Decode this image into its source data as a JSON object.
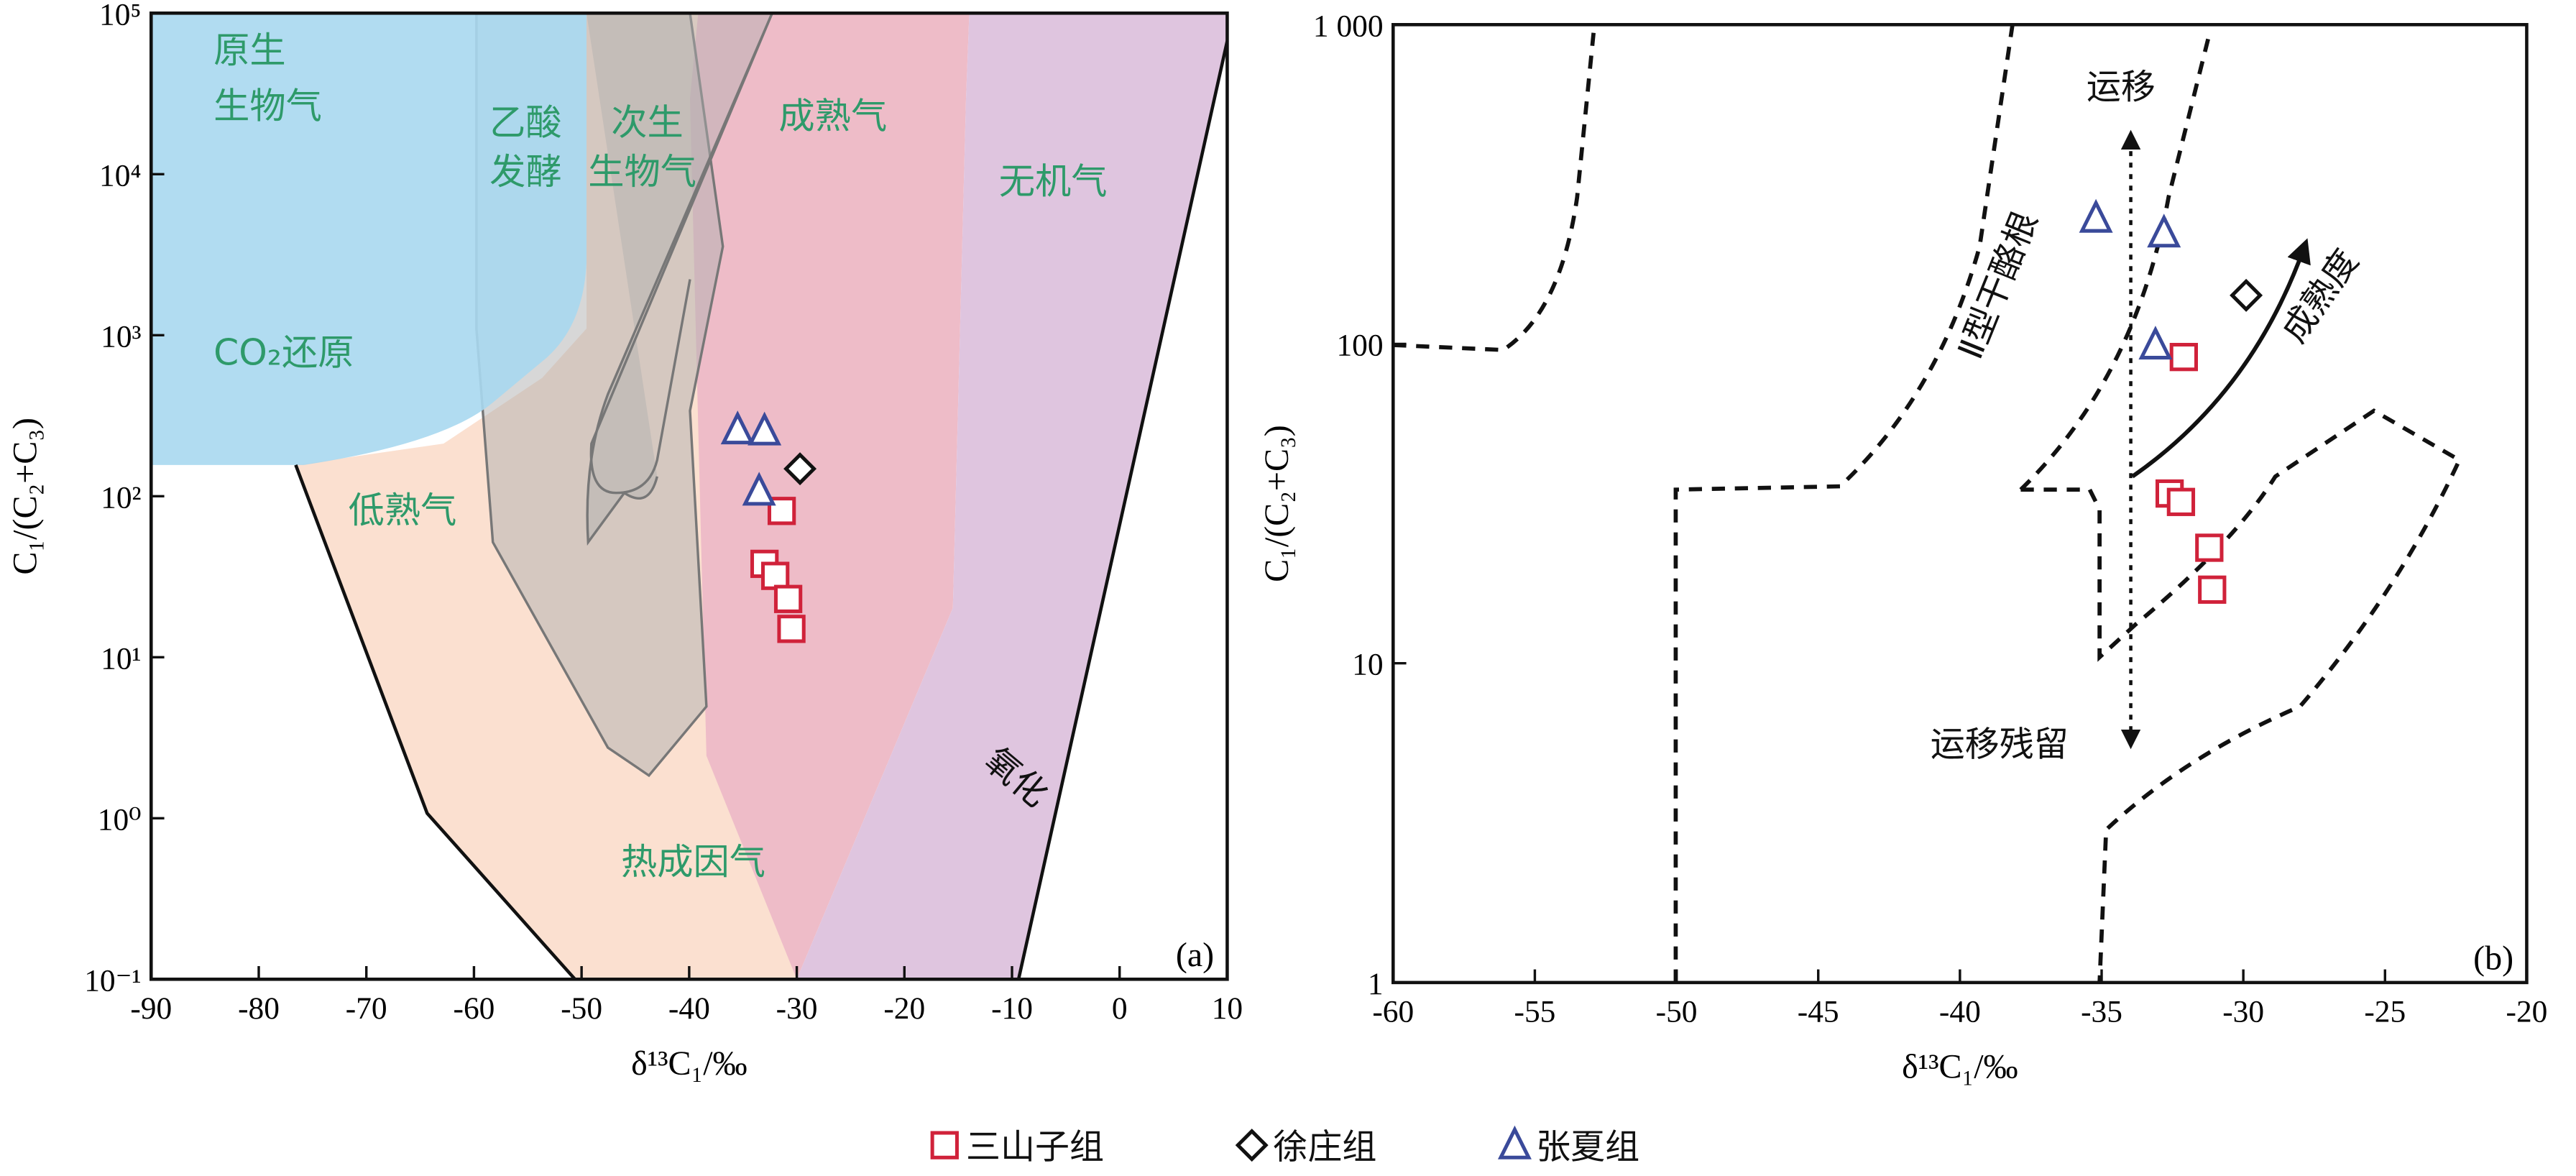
{
  "chart_data": [
    {
      "type": "scatter",
      "log_y": true,
      "xlabel": "δ¹³C₁/‰",
      "ylabel": "C₁/(C₂+C₃)",
      "panel_label": "(a)",
      "xlim": [
        -90,
        10
      ],
      "ylim": [
        0.1,
        100000
      ],
      "xticks": [
        -90,
        -80,
        -70,
        -60,
        -50,
        -40,
        -30,
        -20,
        -10,
        0,
        10
      ],
      "yticks": [
        {
          "value": 0.1,
          "label": "10⁻¹"
        },
        {
          "value": 1,
          "label": "10⁰"
        },
        {
          "value": 10,
          "label": "10¹"
        },
        {
          "value": 100,
          "label": "10²"
        },
        {
          "value": 1000,
          "label": "10³"
        },
        {
          "value": 10000,
          "label": "10⁴"
        },
        {
          "value": 100000,
          "label": "10⁵"
        }
      ],
      "annotations": [
        "原生",
        "生物气",
        "乙酸",
        "发酵",
        "次生",
        "生物气",
        "成熟气",
        "无机气",
        "CO₂还原",
        "低熟气",
        "热成因气",
        "氧化"
      ],
      "series": [
        {
          "name": "三山子组",
          "color": "#d0223a",
          "marker": "square",
          "x": [
            -31.4,
            -33.0,
            -32.0,
            -30.8,
            -30.5
          ],
          "values": [
            81,
            38,
            32,
            23,
            15
          ]
        },
        {
          "name": "徐庄组",
          "color": "#111111",
          "marker": "diamond",
          "x": [
            -29.7
          ],
          "values": [
            148
          ]
        },
        {
          "name": "张夏组",
          "color": "#3a4a9a",
          "marker": "triangle",
          "x": [
            -35.5,
            -33.0,
            -33.5
          ],
          "values": [
            257,
            253,
            107
          ]
        }
      ]
    },
    {
      "type": "scatter",
      "log_y": true,
      "xlabel": "δ¹³C₁/‰",
      "ylabel": "C₁/(C₂+C₃)",
      "panel_label": "(b)",
      "xlim": [
        -60,
        -20
      ],
      "ylim": [
        1,
        1000
      ],
      "xticks": [
        -60,
        -55,
        -50,
        -45,
        -40,
        -35,
        -30,
        -25,
        -20
      ],
      "yticks": [
        1,
        10,
        100,
        {
          "value": 1000,
          "label": "1 000"
        }
      ],
      "annotations": [
        "运移",
        "运移残留",
        "Ⅱ型干酪根",
        "成熟度"
      ],
      "series": [
        {
          "name": "三山子组",
          "color": "#d0223a",
          "marker": "square",
          "x": [
            -32.1,
            -32.6,
            -32.2,
            -31.2,
            -31.1
          ],
          "values": [
            91,
            34,
            32,
            23,
            17
          ]
        },
        {
          "name": "徐庄组",
          "color": "#111111",
          "marker": "diamond",
          "x": [
            -29.9
          ],
          "values": [
            142
          ]
        },
        {
          "name": "张夏组",
          "color": "#3a4a9a",
          "marker": "triangle",
          "x": [
            -35.2,
            -32.8,
            -33.1
          ],
          "values": [
            247,
            222,
            99
          ]
        }
      ]
    }
  ]
}
